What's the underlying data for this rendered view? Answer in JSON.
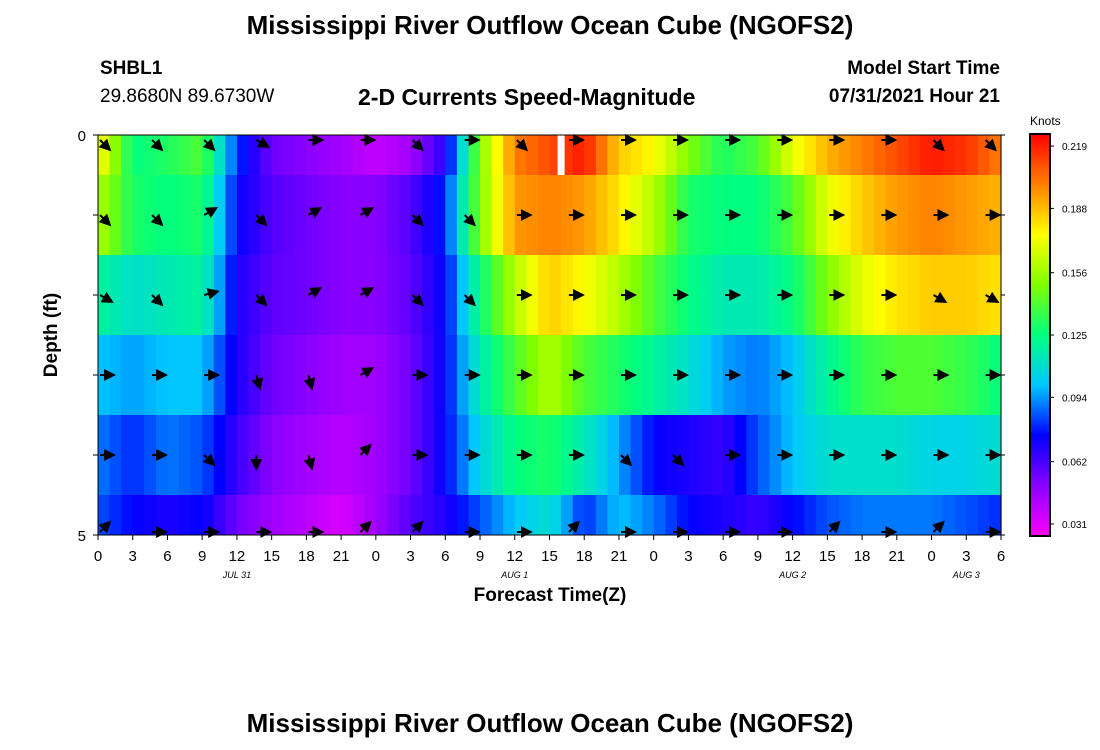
{
  "header": {
    "title": "Mississippi River Outflow Ocean Cube (NGOFS2)",
    "station": "SHBL1",
    "coordinates": "29.8680N  89.6730W",
    "subtitle": "2-D Currents Speed-Magnitude",
    "model_start_label": "Model Start Time",
    "model_start_value": "07/31/2021 Hour 21"
  },
  "footer": {
    "title": "Mississippi River Outflow Ocean Cube (NGOFS2)"
  },
  "chart_data": {
    "type": "heatmap",
    "xlabel": "Forecast Time(Z)",
    "ylabel": "Depth (ft)",
    "ylim": [
      0,
      5
    ],
    "y_tick_labels": [
      "0",
      "5"
    ],
    "x_tick_labels": [
      "0",
      "3",
      "6",
      "9",
      "12",
      "15",
      "18",
      "21",
      "0",
      "3",
      "6",
      "9",
      "12",
      "15",
      "18",
      "21",
      "0",
      "3",
      "6",
      "9",
      "12",
      "15",
      "18",
      "21",
      "0",
      "3",
      "6"
    ],
    "date_labels": [
      {
        "label": "JUL 31",
        "x_hour": 12
      },
      {
        "label": "AUG 1",
        "x_hour": 36
      },
      {
        "label": "AUG 2",
        "x_hour": 60
      },
      {
        "label": "AUG 3",
        "x_hour": 75
      }
    ],
    "x_hours": [
      0,
      3,
      6,
      9,
      12,
      15,
      18,
      21,
      24,
      27,
      30,
      33,
      36,
      39,
      42,
      45,
      48,
      51,
      54,
      57,
      60,
      63,
      66,
      69,
      72,
      75,
      78
    ],
    "depth_rows": [
      0,
      1,
      2,
      3,
      4,
      5
    ],
    "speed_knots": [
      [
        0.178,
        0.125,
        0.131,
        0.14,
        0.082,
        0.055,
        0.05,
        0.045,
        0.038,
        0.045,
        0.068,
        0.15,
        0.2,
        0.21,
        0.22,
        0.185,
        0.175,
        0.15,
        0.13,
        0.14,
        0.17,
        0.19,
        0.2,
        0.21,
        0.22,
        0.215,
        0.2
      ],
      [
        0.16,
        0.13,
        0.125,
        0.13,
        0.075,
        0.06,
        0.055,
        0.05,
        0.05,
        0.06,
        0.08,
        0.15,
        0.195,
        0.2,
        0.195,
        0.18,
        0.16,
        0.13,
        0.125,
        0.125,
        0.14,
        0.17,
        0.185,
        0.195,
        0.2,
        0.195,
        0.19
      ],
      [
        0.12,
        0.11,
        0.115,
        0.12,
        0.07,
        0.058,
        0.055,
        0.05,
        0.05,
        0.058,
        0.075,
        0.125,
        0.16,
        0.185,
        0.175,
        0.16,
        0.14,
        0.125,
        0.115,
        0.115,
        0.125,
        0.15,
        0.17,
        0.18,
        0.185,
        0.185,
        0.18
      ],
      [
        0.1,
        0.095,
        0.1,
        0.1,
        0.07,
        0.055,
        0.05,
        0.045,
        0.045,
        0.055,
        0.075,
        0.115,
        0.14,
        0.16,
        0.14,
        0.13,
        0.12,
        0.11,
        0.095,
        0.09,
        0.1,
        0.12,
        0.135,
        0.14,
        0.14,
        0.135,
        0.125
      ],
      [
        0.09,
        0.08,
        0.09,
        0.085,
        0.065,
        0.05,
        0.045,
        0.04,
        0.045,
        0.055,
        0.075,
        0.105,
        0.125,
        0.13,
        0.115,
        0.095,
        0.075,
        0.07,
        0.065,
        0.085,
        0.1,
        0.11,
        0.11,
        0.11,
        0.105,
        0.105,
        0.11
      ],
      [
        0.085,
        0.075,
        0.07,
        0.075,
        0.055,
        0.045,
        0.04,
        0.033,
        0.045,
        0.06,
        0.07,
        0.085,
        0.1,
        0.11,
        0.08,
        0.1,
        0.09,
        0.075,
        0.07,
        0.065,
        0.075,
        0.085,
        0.09,
        0.09,
        0.09,
        0.085,
        0.08
      ]
    ],
    "arrow_hours": [
      0,
      4.5,
      9,
      13.5,
      18,
      22.5,
      27,
      31.5,
      36,
      40.5,
      45,
      49.5,
      54,
      58.5,
      63,
      67.5,
      72,
      76.5
    ],
    "arrow_direction_deg": [
      [
        135,
        135,
        135,
        120,
        90,
        90,
        135,
        90,
        135,
        90,
        90,
        90,
        90,
        90,
        90,
        90,
        135,
        135
      ],
      [
        135,
        135,
        60,
        135,
        60,
        60,
        135,
        135,
        90,
        90,
        90,
        90,
        90,
        90,
        90,
        90,
        90,
        90
      ],
      [
        120,
        135,
        75,
        135,
        60,
        60,
        135,
        135,
        90,
        90,
        90,
        90,
        90,
        90,
        90,
        90,
        120,
        120
      ],
      [
        90,
        90,
        90,
        165,
        165,
        60,
        90,
        90,
        90,
        90,
        90,
        90,
        90,
        90,
        90,
        90,
        90,
        90
      ],
      [
        90,
        90,
        135,
        180,
        165,
        45,
        90,
        90,
        90,
        90,
        135,
        135,
        90,
        90,
        90,
        90,
        90,
        90
      ],
      [
        45,
        90,
        90,
        90,
        90,
        45,
        45,
        90,
        90,
        45,
        90,
        90,
        90,
        90,
        45,
        90,
        45,
        90
      ]
    ],
    "colorbar": {
      "label": "Knots",
      "ticks": [
        "0.219",
        "0.188",
        "0.156",
        "0.125",
        "0.094",
        "0.062",
        "0.031"
      ],
      "min": 0.025,
      "max": 0.225
    },
    "colors": {
      "cmap": [
        "#ff00ff",
        "#8a00ff",
        "#0000ff",
        "#00c8ff",
        "#00ff80",
        "#80ff00",
        "#ffff00",
        "#ff8000",
        "#ff0000"
      ]
    }
  }
}
